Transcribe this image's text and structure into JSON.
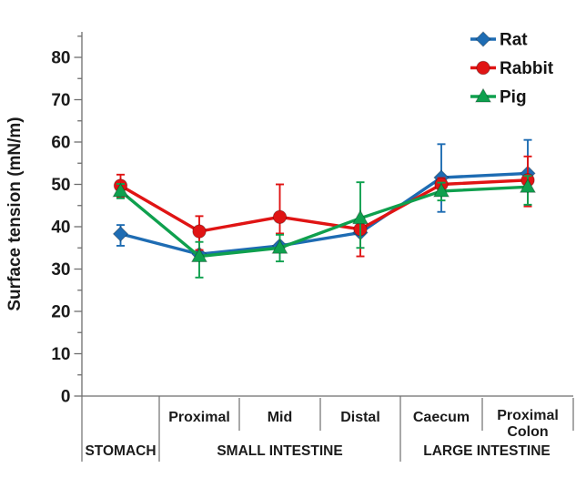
{
  "chart_data": {
    "type": "line",
    "title": "",
    "ylabel": "Surface tension (mN/m)",
    "xlabel": "",
    "ylim": [
      0,
      86
    ],
    "yticks": [
      0,
      10,
      20,
      30,
      40,
      50,
      60,
      70,
      80
    ],
    "minor_tick_interval": 5,
    "grid": false,
    "legend_position": "top-right",
    "categories": [
      "Stomach",
      "Small intestine Proximal",
      "Small intestine Mid",
      "Small intestine Distal",
      "Caecum",
      "Proximal Colon"
    ],
    "x_axis": {
      "cell_labels": [
        "",
        "Proximal",
        "Mid",
        "Distal",
        "Caecum",
        [
          "Proximal",
          "Colon"
        ]
      ],
      "group_labels": [
        {
          "label": "STOMACH",
          "start": 0,
          "end": 1
        },
        {
          "label": "SMALL INTESTINE",
          "start": 1,
          "end": 4
        },
        {
          "label": "LARGE INTESTINE",
          "start": 4,
          "end": 6
        }
      ]
    },
    "series": [
      {
        "name": "Rat",
        "marker": "diamond",
        "color": "#1e6cb3",
        "values": [
          38.3,
          33.5,
          35.5,
          38.6,
          51.6,
          52.6
        ],
        "err_up": [
          2.1,
          0,
          0,
          0,
          7.9,
          7.9
        ],
        "err_down": [
          2.8,
          0,
          0,
          0,
          8.1,
          7.6
        ]
      },
      {
        "name": "Rabbit",
        "marker": "circle",
        "color": "#e01414",
        "values": [
          49.7,
          38.9,
          42.3,
          39.4,
          50.0,
          51.0
        ],
        "err_up": [
          2.6,
          3.6,
          7.7,
          1.6,
          1.5,
          5.6
        ],
        "err_down": [
          2.6,
          4.4,
          3.9,
          6.4,
          1.5,
          6.2
        ]
      },
      {
        "name": "Pig",
        "marker": "triangle",
        "color": "#0fa04e",
        "values": [
          48.4,
          33.0,
          35.0,
          42.0,
          48.4,
          49.4
        ],
        "err_up": [
          1.7,
          3.4,
          3.1,
          8.5,
          2.0,
          2.6
        ],
        "err_down": [
          1.7,
          5.0,
          3.2,
          7.0,
          2.2,
          4.2
        ]
      }
    ],
    "colors": {
      "axis_line": "#6e6e6e",
      "text": "#1b1b1b",
      "background": "#ffffff"
    }
  }
}
